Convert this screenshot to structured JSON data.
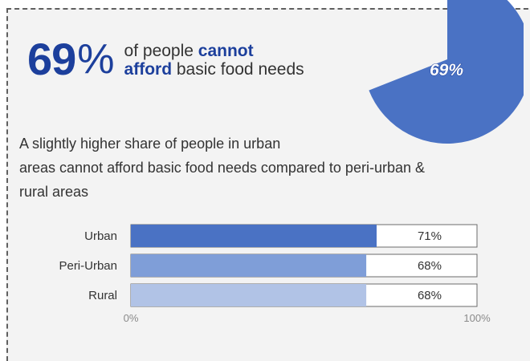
{
  "headline": {
    "number": "69",
    "percent_sign": "%",
    "text_before": "of people ",
    "bold_1": "cannot",
    "bold_2": "afford",
    "text_after": " basic food needs"
  },
  "pie": {
    "label": "69%",
    "value": 69,
    "color": "#4a72c4"
  },
  "subtitle": {
    "line1": "A slightly higher share of people in urban",
    "line2": "areas cannot afford basic food needs compared to peri-urban &",
    "line3": "rural areas"
  },
  "chart_data": {
    "type": "bar",
    "orientation": "horizontal",
    "categories": [
      "Urban",
      "Peri-Urban",
      "Rural"
    ],
    "values": [
      71,
      68,
      68
    ],
    "value_labels": [
      "71%",
      "68%",
      "68%"
    ],
    "colors": [
      "#4a72c4",
      "#7f9ed8",
      "#b1c3e6"
    ],
    "xlim": [
      0,
      100
    ],
    "x_tick_labels": [
      "0%",
      "100%"
    ],
    "grid": false
  }
}
